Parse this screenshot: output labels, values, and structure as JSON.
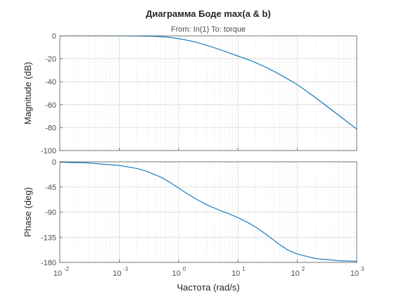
{
  "chart_data": {
    "type": "line",
    "title": "Диаграмма Боде max(a & b)",
    "subtitle": "From: In(1)  To: torque",
    "xlabel": "Частота  (rad/s)",
    "xscale": "log",
    "xlim": [
      0.01,
      1000
    ],
    "x_ticks": [
      0.01,
      0.1,
      1,
      10,
      100,
      1000
    ],
    "x_tick_labels": [
      {
        "base": "10",
        "exp": "-2"
      },
      {
        "base": "10",
        "exp": "-1"
      },
      {
        "base": "10",
        "exp": "0"
      },
      {
        "base": "10",
        "exp": "1"
      },
      {
        "base": "10",
        "exp": "2"
      },
      {
        "base": "10",
        "exp": "3"
      }
    ],
    "grid": true,
    "color": "#0072bd",
    "subplots": [
      {
        "ylabel": "Magnitude (dB)",
        "ylim": [
          -100,
          0
        ],
        "y_ticks": [
          0,
          -20,
          -40,
          -60,
          -80,
          -100
        ],
        "y_tick_labels": [
          "0",
          "-20",
          "-40",
          "-60",
          "-80",
          "-100"
        ],
        "series": [
          {
            "x": [
              0.01,
              0.03,
              0.1,
              0.2,
              0.3,
              0.5,
              0.7,
              1,
              1.5,
              2,
              3,
              5,
              7,
              10,
              15,
              20,
              30,
              50,
              70,
              100,
              200,
              500,
              1000
            ],
            "y": [
              0,
              0,
              0,
              -0.1,
              -0.3,
              -0.7,
              -1.3,
              -2.4,
              -4.1,
              -5.6,
              -8.3,
              -12,
              -14.7,
              -17.6,
              -20.8,
              -23.4,
              -27.5,
              -33.5,
              -37.8,
              -42.5,
              -53.7,
              -69.3,
              -81.2
            ]
          }
        ]
      },
      {
        "ylabel": "Phase (deg)",
        "ylim": [
          -180,
          0
        ],
        "y_ticks": [
          0,
          -45,
          -90,
          -135,
          -180
        ],
        "y_tick_labels": [
          "0",
          "-45",
          "-90",
          "-135",
          "-180"
        ],
        "series": [
          {
            "x": [
              0.01,
              0.03,
              0.1,
              0.2,
              0.3,
              0.5,
              0.7,
              1,
              1.5,
              2,
              3,
              5,
              7,
              10,
              15,
              20,
              30,
              50,
              70,
              100,
              200,
              500,
              1000
            ],
            "y": [
              -0.7,
              -2,
              -6.5,
              -12,
              -17.5,
              -27.5,
              -36,
              -47,
              -59,
              -67,
              -77,
              -87,
              -93,
              -100,
              -109,
              -117,
              -130,
              -148,
              -158,
              -165,
              -173,
              -177,
              -178
            ]
          }
        ]
      }
    ]
  }
}
